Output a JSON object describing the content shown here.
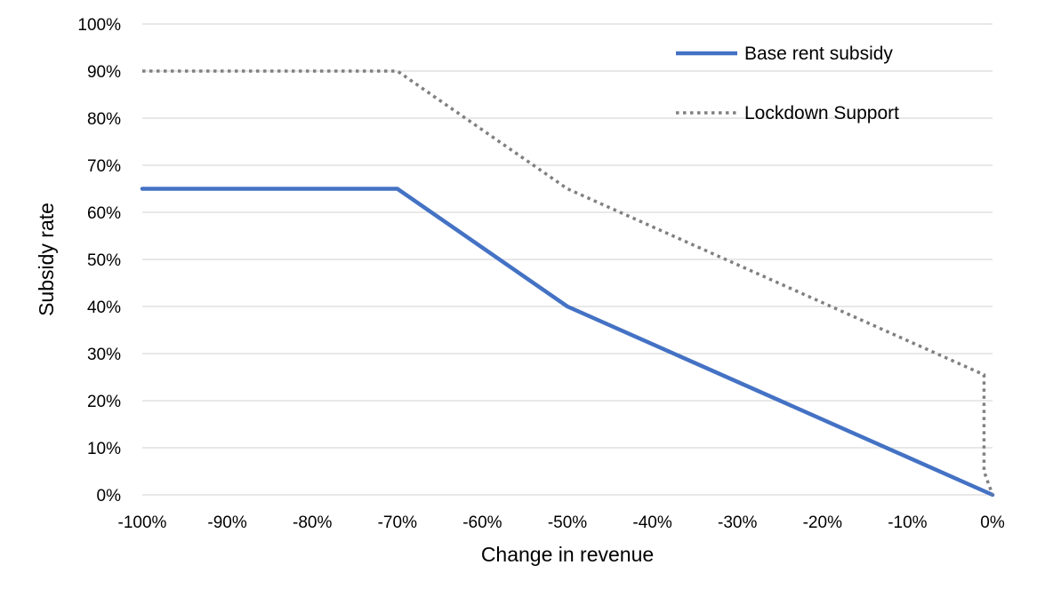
{
  "chart_data": {
    "type": "line",
    "title": "",
    "xlabel": "Change in revenue",
    "ylabel": "Subsidy rate",
    "xlim": [
      -100,
      0
    ],
    "ylim": [
      0,
      100
    ],
    "grid": true,
    "legend_position": "top-right",
    "x_tick_labels": [
      "-100%",
      "-90%",
      "-80%",
      "-70%",
      "-60%",
      "-50%",
      "-40%",
      "-30%",
      "-20%",
      "-10%",
      "0%"
    ],
    "y_tick_labels": [
      "0%",
      "10%",
      "20%",
      "30%",
      "40%",
      "50%",
      "60%",
      "70%",
      "80%",
      "90%",
      "100%"
    ],
    "series": [
      {
        "name": "Base rent subsidy",
        "color": "#4472c4",
        "style": "solid",
        "x": [
          -100,
          -70,
          -50,
          0
        ],
        "y": [
          65,
          65,
          40,
          0
        ]
      },
      {
        "name": "Lockdown Support",
        "color": "#808080",
        "style": "dotted",
        "x": [
          -100,
          -70,
          -50,
          -1,
          -1,
          0
        ],
        "y": [
          90,
          90,
          65,
          25.5,
          5,
          0
        ]
      }
    ]
  }
}
